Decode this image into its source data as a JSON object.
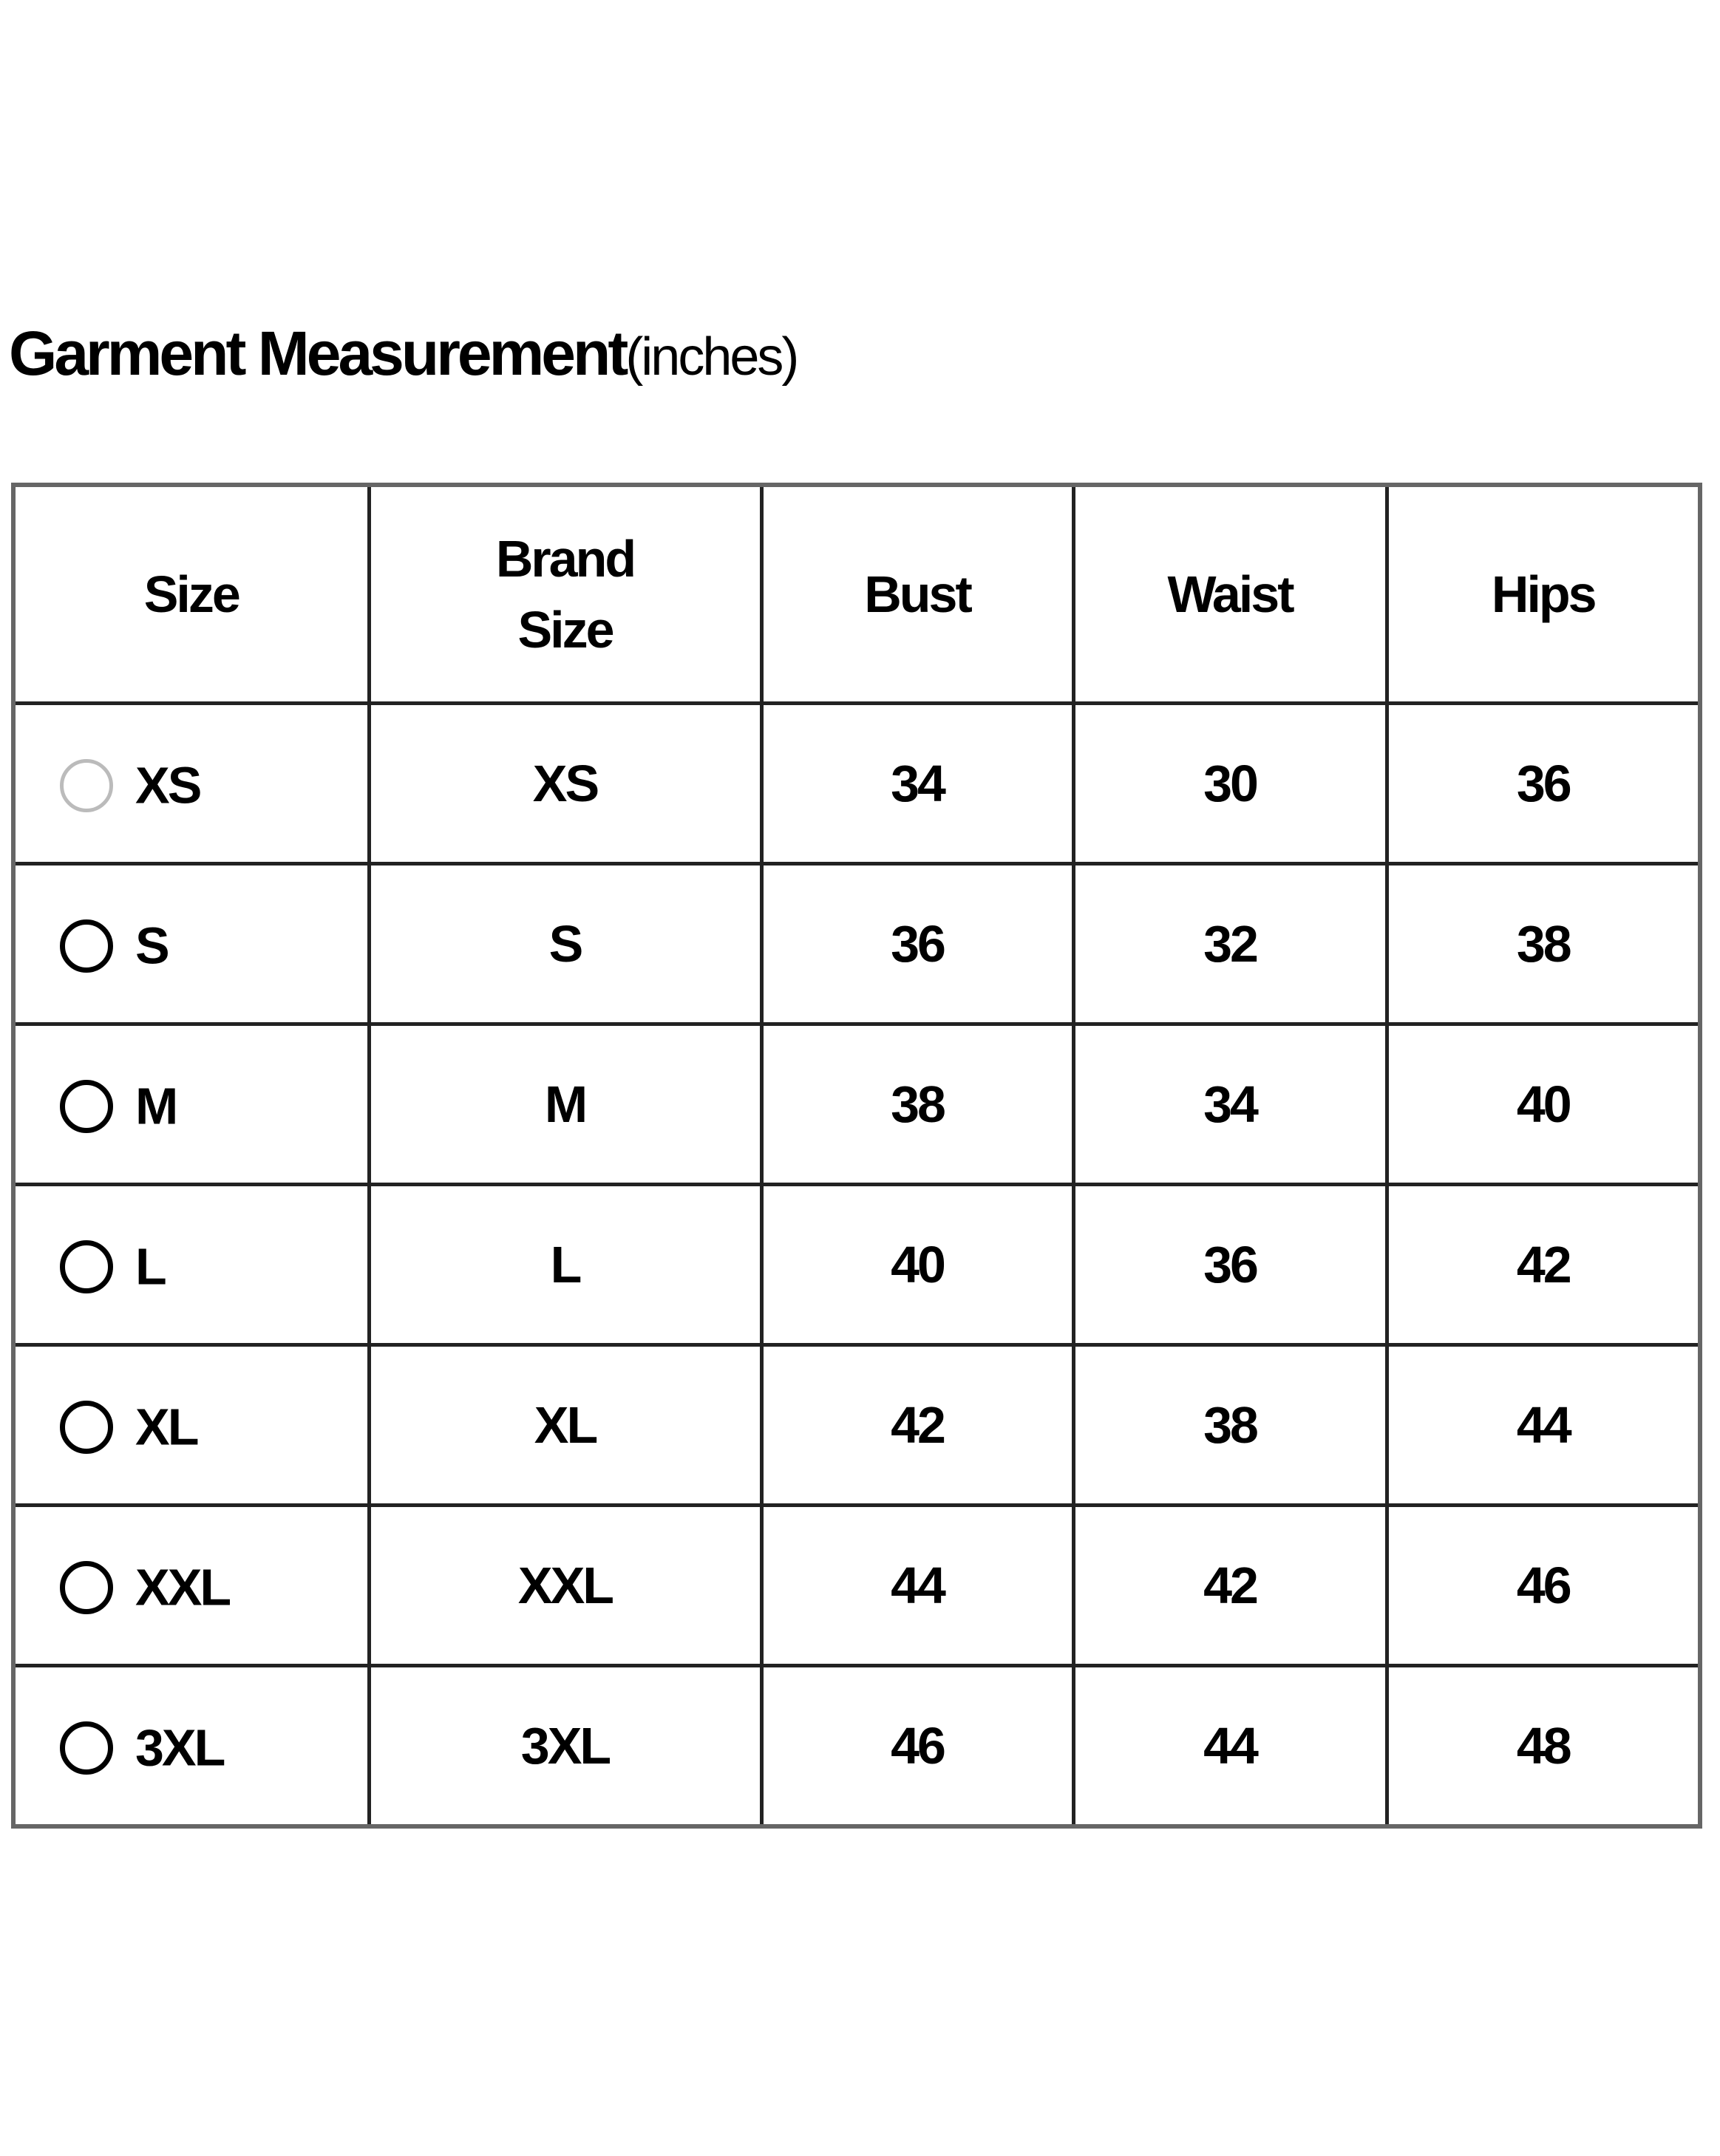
{
  "title": {
    "main": "Garment Measurement",
    "unit": "(inches)"
  },
  "columns": [
    "Size",
    "Brand Size",
    "Bust",
    "Waist",
    "Hips"
  ],
  "columns_lines": {
    "brand1": "Brand",
    "brand2": "Size"
  },
  "rows": [
    {
      "size": "XS",
      "brand": "XS",
      "bust": "34",
      "waist": "30",
      "hips": "36",
      "disabled": true
    },
    {
      "size": "S",
      "brand": "S",
      "bust": "36",
      "waist": "32",
      "hips": "38"
    },
    {
      "size": "M",
      "brand": "M",
      "bust": "38",
      "waist": "34",
      "hips": "40"
    },
    {
      "size": "L",
      "brand": "L",
      "bust": "40",
      "waist": "36",
      "hips": "42"
    },
    {
      "size": "XL",
      "brand": "XL",
      "bust": "42",
      "waist": "38",
      "hips": "44"
    },
    {
      "size": "XXL",
      "brand": "XXL",
      "bust": "44",
      "waist": "42",
      "hips": "46"
    },
    {
      "size": "3XL",
      "brand": "3XL",
      "bust": "46",
      "waist": "44",
      "hips": "48"
    }
  ],
  "colors": {
    "outer_border": "#666666",
    "inner_border": "#222222",
    "disabled_radio": "#bbbbbb"
  }
}
